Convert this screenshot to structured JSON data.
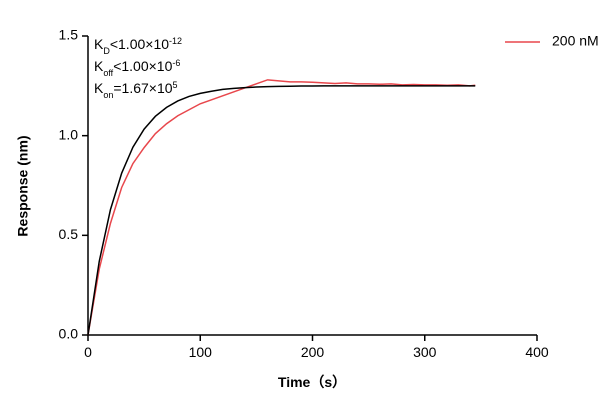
{
  "chart_data": {
    "type": "line",
    "x_label": "Time（s）",
    "y_label": "Response (nm)",
    "x": [
      0,
      10,
      20,
      30,
      40,
      50,
      60,
      70,
      80,
      90,
      100,
      110,
      120,
      130,
      140,
      150,
      160,
      170,
      180,
      190,
      200,
      210,
      220,
      230,
      240,
      250,
      260,
      270,
      280,
      290,
      300,
      310,
      320,
      330,
      340,
      345
    ],
    "series": [
      {
        "name": "200 nM",
        "color": "#e8474c",
        "values": [
          0,
          0.33,
          0.56,
          0.74,
          0.86,
          0.94,
          1.01,
          1.06,
          1.1,
          1.13,
          1.16,
          1.18,
          1.2,
          1.22,
          1.24,
          1.26,
          1.28,
          1.275,
          1.27,
          1.27,
          1.268,
          1.265,
          1.262,
          1.265,
          1.26,
          1.26,
          1.258,
          1.26,
          1.255,
          1.257,
          1.255,
          1.255,
          1.253,
          1.255,
          1.25,
          1.253
        ]
      },
      {
        "color": "#000000",
        "values": [
          0,
          0.369,
          0.629,
          0.812,
          0.942,
          1.033,
          1.097,
          1.142,
          1.174,
          1.197,
          1.212,
          1.223,
          1.232,
          1.237,
          1.241,
          1.244,
          1.246,
          1.247,
          1.248,
          1.249,
          1.249,
          1.25,
          1.25,
          1.25,
          1.25,
          1.25,
          1.25,
          1.25,
          1.25,
          1.25,
          1.25,
          1.25,
          1.25,
          1.25,
          1.25,
          1.25
        ]
      }
    ],
    "annotations": [
      {
        "base": "K",
        "sub": "D",
        "text": "<1.00×10",
        "sup": "-12"
      },
      {
        "base": "K",
        "sub": "off",
        "text": "<1.00×10",
        "sup": "-6"
      },
      {
        "base": "K",
        "sub": "on",
        "text": "=1.67×10",
        "sup": "5"
      }
    ],
    "xlim": [
      0,
      400
    ],
    "xticks": [
      0,
      100,
      200,
      300,
      400
    ],
    "ylim": [
      0,
      1.5
    ],
    "yticks": [
      {
        "value": 0,
        "label": "0.0"
      },
      0.5,
      {
        "value": 1,
        "label": "1.0"
      },
      1.5
    ],
    "legend": "top-right"
  }
}
